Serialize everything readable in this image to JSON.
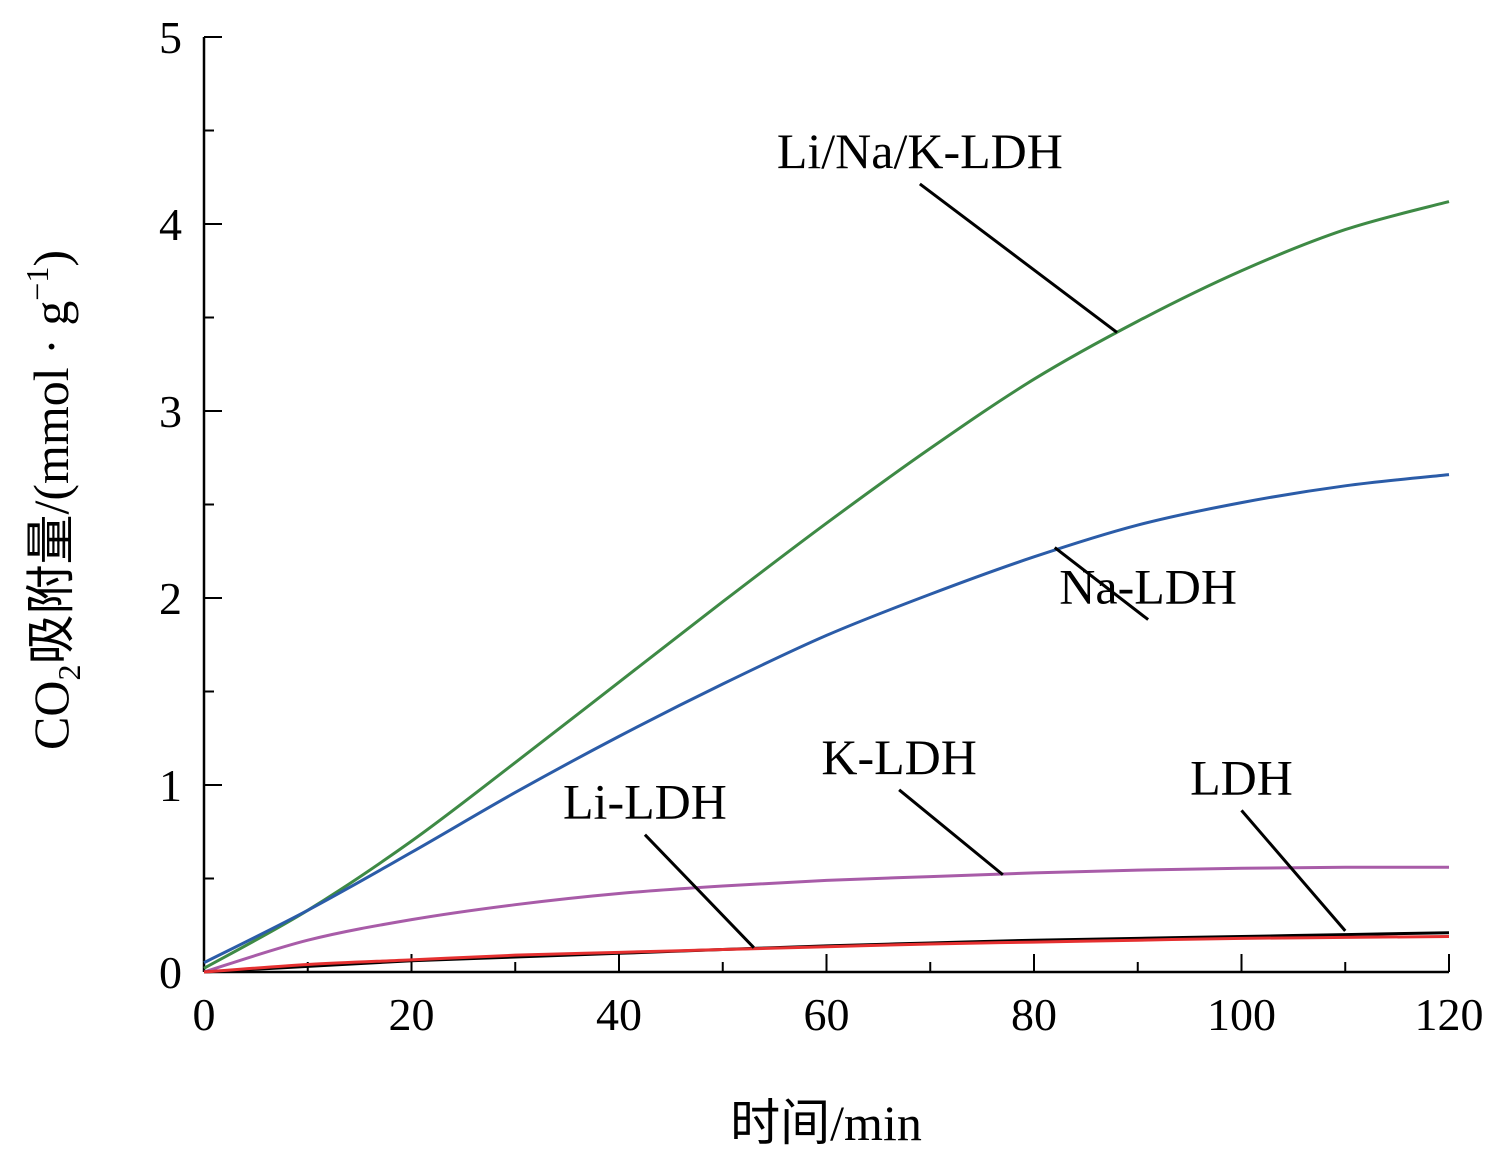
{
  "chart_data": {
    "type": "line",
    "xlabel": "时间/min",
    "ylabel": {
      "prefix": "CO",
      "sub": "2",
      "middle": "吸附量/(mmol · g",
      "sup": "−1",
      "suffix": ")"
    },
    "xlim": [
      0,
      120
    ],
    "ylim": [
      0,
      5
    ],
    "x_ticks": [
      0,
      20,
      40,
      60,
      80,
      100,
      120
    ],
    "x_minor_step": 10,
    "y_ticks": [
      0,
      1,
      2,
      3,
      4,
      5
    ],
    "y_minor_step": 0.5,
    "grid": false,
    "series": [
      {
        "name": "Li/Na/K-LDH",
        "color": "#3e8a45",
        "x": [
          0,
          10,
          20,
          30,
          40,
          50,
          60,
          70,
          80,
          90,
          100,
          110,
          120
        ],
        "y": [
          0.02,
          0.33,
          0.7,
          1.12,
          1.55,
          1.98,
          2.4,
          2.8,
          3.17,
          3.48,
          3.75,
          3.97,
          4.12
        ],
        "label": {
          "text": "Li/Na/K-LDH",
          "at": [
            88,
            3.42
          ],
          "text_at": [
            69,
            4.3
          ]
        }
      },
      {
        "name": "Na-LDH",
        "color": "#2b5ca8",
        "x": [
          0,
          10,
          20,
          30,
          40,
          50,
          60,
          70,
          80,
          90,
          100,
          110,
          120
        ],
        "y": [
          0.05,
          0.33,
          0.64,
          0.96,
          1.26,
          1.54,
          1.8,
          2.02,
          2.22,
          2.39,
          2.51,
          2.6,
          2.66
        ],
        "label": {
          "text": "Na-LDH",
          "at": [
            82,
            2.27
          ],
          "text_at": [
            91,
            1.97
          ]
        }
      },
      {
        "name": "K-LDH",
        "color": "#a85ca8",
        "x": [
          0,
          10,
          20,
          30,
          40,
          50,
          60,
          70,
          80,
          90,
          100,
          110,
          120
        ],
        "y": [
          0.0,
          0.17,
          0.28,
          0.36,
          0.42,
          0.46,
          0.49,
          0.51,
          0.53,
          0.545,
          0.555,
          0.56,
          0.56
        ],
        "label": {
          "text": "K-LDH",
          "at": [
            77,
            0.52
          ],
          "text_at": [
            67,
            1.06
          ]
        }
      },
      {
        "name": "LDH",
        "color": "#000000",
        "x": [
          0,
          10,
          20,
          30,
          40,
          50,
          60,
          70,
          80,
          90,
          100,
          110,
          120
        ],
        "y": [
          0.0,
          0.03,
          0.06,
          0.08,
          0.1,
          0.12,
          0.14,
          0.155,
          0.17,
          0.18,
          0.19,
          0.2,
          0.21
        ],
        "label": {
          "text": "LDH",
          "at": [
            110,
            0.22
          ],
          "text_at": [
            100,
            0.95
          ]
        }
      },
      {
        "name": "Li-LDH",
        "color": "#e53030",
        "x": [
          0,
          10,
          20,
          30,
          40,
          50,
          60,
          70,
          80,
          90,
          100,
          110,
          120
        ],
        "y": [
          0.0,
          0.04,
          0.065,
          0.09,
          0.105,
          0.12,
          0.135,
          0.15,
          0.16,
          0.17,
          0.18,
          0.185,
          0.19
        ],
        "label": {
          "text": "Li-LDH",
          "at": [
            53,
            0.13
          ],
          "text_at": [
            42.5,
            0.82
          ]
        }
      }
    ]
  }
}
